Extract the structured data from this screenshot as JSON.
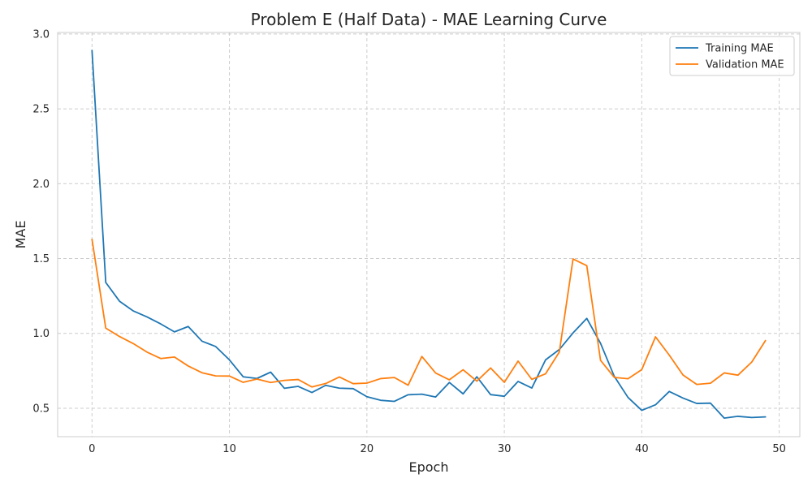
{
  "chart_data": {
    "type": "line",
    "title": "Problem E (Half Data) - MAE Learning Curve",
    "xlabel": "Epoch",
    "ylabel": "MAE",
    "xlim": [
      -2.5,
      51.5
    ],
    "ylim": [
      0.31,
      3.01
    ],
    "x_ticks": [
      0,
      10,
      20,
      30,
      40,
      50
    ],
    "y_ticks": [
      0.5,
      1.0,
      1.5,
      2.0,
      2.5,
      3.0
    ],
    "x_tick_labels": [
      "0",
      "10",
      "20",
      "30",
      "40",
      "50"
    ],
    "y_tick_labels": [
      "0.5",
      "1.0",
      "1.5",
      "2.0",
      "2.5",
      "3.0"
    ],
    "grid": true,
    "legend_position": "top-right",
    "x": [
      0,
      1,
      2,
      3,
      4,
      5,
      6,
      7,
      8,
      9,
      10,
      11,
      12,
      13,
      14,
      15,
      16,
      17,
      18,
      19,
      20,
      21,
      22,
      23,
      24,
      25,
      26,
      27,
      28,
      29,
      30,
      31,
      32,
      33,
      34,
      35,
      36,
      37,
      38,
      39,
      40,
      41,
      42,
      43,
      44,
      45,
      46,
      47,
      48,
      49
    ],
    "series": [
      {
        "name": "Training MAE",
        "color": "#1f77b4",
        "values": [
          2.89,
          1.34,
          1.215,
          1.15,
          1.11,
          1.063,
          1.01,
          1.046,
          0.948,
          0.912,
          0.823,
          0.71,
          0.699,
          0.741,
          0.633,
          0.646,
          0.605,
          0.653,
          0.634,
          0.631,
          0.577,
          0.553,
          0.546,
          0.59,
          0.594,
          0.575,
          0.672,
          0.596,
          0.71,
          0.591,
          0.58,
          0.679,
          0.635,
          0.823,
          0.892,
          1.003,
          1.1,
          0.934,
          0.713,
          0.572,
          0.486,
          0.523,
          0.612,
          0.568,
          0.532,
          0.534,
          0.434,
          0.446,
          0.438,
          0.442
        ]
      },
      {
        "name": "Validation MAE",
        "color": "#ff7f0e",
        "values": [
          1.628,
          1.035,
          0.979,
          0.932,
          0.875,
          0.832,
          0.842,
          0.782,
          0.737,
          0.716,
          0.715,
          0.673,
          0.695,
          0.672,
          0.686,
          0.692,
          0.642,
          0.665,
          0.709,
          0.664,
          0.668,
          0.698,
          0.705,
          0.654,
          0.846,
          0.735,
          0.69,
          0.757,
          0.681,
          0.769,
          0.673,
          0.815,
          0.693,
          0.73,
          0.875,
          1.497,
          1.452,
          0.82,
          0.706,
          0.697,
          0.758,
          0.977,
          0.855,
          0.722,
          0.659,
          0.667,
          0.736,
          0.721,
          0.808,
          0.952
        ]
      }
    ]
  }
}
